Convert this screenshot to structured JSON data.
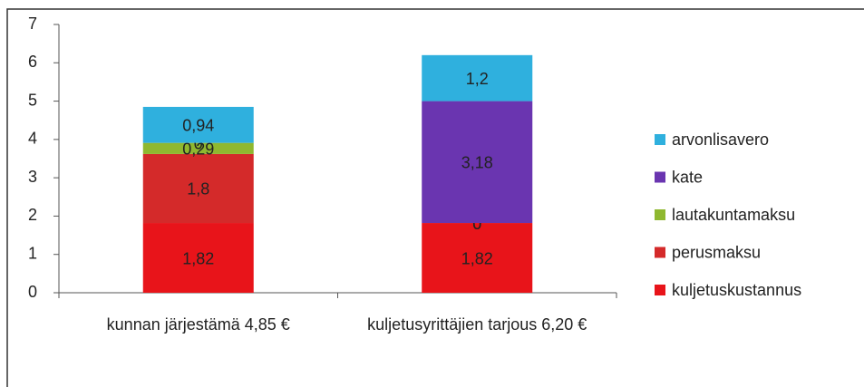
{
  "chart_data": {
    "type": "stacked_bar",
    "categories": [
      "kunnan järjestämä 4,85 €",
      "kuljetusyrittäjien tarjous 6,20 €"
    ],
    "series": [
      {
        "name": "kuljetuskustannus",
        "color": "#e8141a",
        "values": [
          1.82,
          1.82
        ],
        "value_labels": [
          "1,82",
          "1,82"
        ]
      },
      {
        "name": "perusmaksu",
        "color": "#d42a2a",
        "values": [
          1.8,
          0
        ],
        "value_labels": [
          "1,8",
          "0"
        ]
      },
      {
        "name": "lautakuntamaksu",
        "color": "#8fb830",
        "values": [
          0.29,
          0
        ],
        "value_labels": [
          "0,29",
          "0"
        ]
      },
      {
        "name": "kate",
        "color": "#6a35b0",
        "values": [
          0,
          3.18
        ],
        "value_labels": [
          "0",
          "3,18"
        ]
      },
      {
        "name": "arvonlisavero",
        "color": "#2fb0de",
        "values": [
          0.94,
          1.2
        ],
        "value_labels": [
          "0,94",
          "1,2"
        ]
      }
    ],
    "ylim": [
      0,
      7
    ],
    "yticks": [
      0,
      1,
      2,
      3,
      4,
      5,
      6,
      7
    ],
    "grid": false,
    "legend": "right"
  }
}
